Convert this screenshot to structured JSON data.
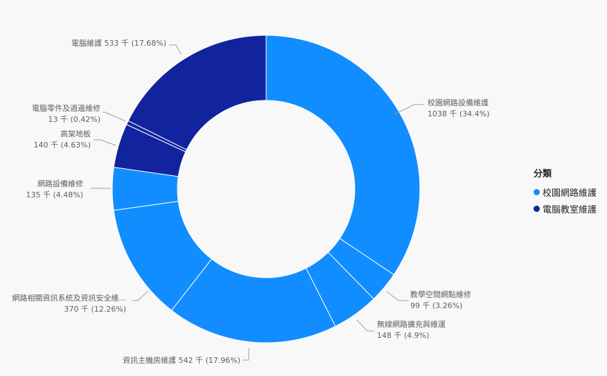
{
  "chart_data": {
    "type": "pie",
    "subtype": "donut",
    "title": "",
    "unit": "千",
    "legend": {
      "title": "分類",
      "position": "right",
      "entries": [
        {
          "label": "校園網路維護",
          "color": "#118DFF"
        },
        {
          "label": "電腦教室維護",
          "color": "#12239E"
        }
      ]
    },
    "slices": [
      {
        "label": "校園網路設備維護",
        "value": 1038,
        "percent": 34.4,
        "category": "校園網路維護",
        "color": "#118DFF",
        "display_value": "1038 千 (34.4%)"
      },
      {
        "label": "教學空間網點維修",
        "value": 99,
        "percent": 3.26,
        "category": "校園網路維護",
        "color": "#118DFF",
        "display_value": "99 千 (3.26%)"
      },
      {
        "label": "無線網路擴充與維運",
        "value": 148,
        "percent": 4.9,
        "category": "校園網路維護",
        "color": "#118DFF",
        "display_value": "148 千 (4.9%)"
      },
      {
        "label": "資訊主機房維護",
        "value": 542,
        "percent": 17.96,
        "category": "校園網路維護",
        "color": "#118DFF",
        "display_value": "資訊主機房維護 542 千 (17.96%)"
      },
      {
        "label": "網路相關資訊系統及資訊安全維...",
        "value": 370,
        "percent": 12.26,
        "category": "校園網路維護",
        "color": "#118DFF",
        "display_value": "370 千 (12.26%)"
      },
      {
        "label": "網路設備維修",
        "value": 135,
        "percent": 4.48,
        "category": "校園網路維護",
        "color": "#118DFF",
        "display_value": "135 千 (4.48%)"
      },
      {
        "label": "高架地板",
        "value": 140,
        "percent": 4.63,
        "category": "電腦教室維護",
        "color": "#12239E",
        "display_value": "140 千 (4.63%)"
      },
      {
        "label": "電腦零件及週邊維修",
        "value": 13,
        "percent": 0.42,
        "category": "電腦教室維護",
        "color": "#12239E",
        "display_value": "13 千 (0.42%)"
      },
      {
        "label": "電腦維護",
        "value": 533,
        "percent": 17.68,
        "category": "電腦教室維護",
        "color": "#12239E",
        "display_value": "電腦維護 533 千 (17.68%)"
      }
    ]
  },
  "labels": {
    "s0": {
      "name": "校園網路設備維護",
      "value": "1038 千 (34.4%)"
    },
    "s1": {
      "name": "教學空間網點維修",
      "value": "99 千 (3.26%)"
    },
    "s2": {
      "name": "無線網路擴充與維運",
      "value": "148 千 (4.9%)"
    },
    "s3": {
      "single": "資訊主機房維護 542 千 (17.96%)"
    },
    "s4": {
      "name": "網路相關資訊系統及資訊安全維...",
      "value": "370 千 (12.26%)"
    },
    "s5": {
      "name": "網路設備維修",
      "value": "135 千 (4.48%)"
    },
    "s6": {
      "name": "高架地板",
      "value": "140 千 (4.63%)"
    },
    "s7": {
      "name": "電腦零件及週邊維修",
      "value": "13 千 (0.42%)"
    },
    "s8": {
      "single": "電腦維護 533 千 (17.68%)"
    }
  },
  "legend": {
    "title": "分類",
    "items": [
      {
        "label": "校園網路維護",
        "color": "#118DFF"
      },
      {
        "label": "電腦教室維護",
        "color": "#12239E"
      }
    ]
  }
}
